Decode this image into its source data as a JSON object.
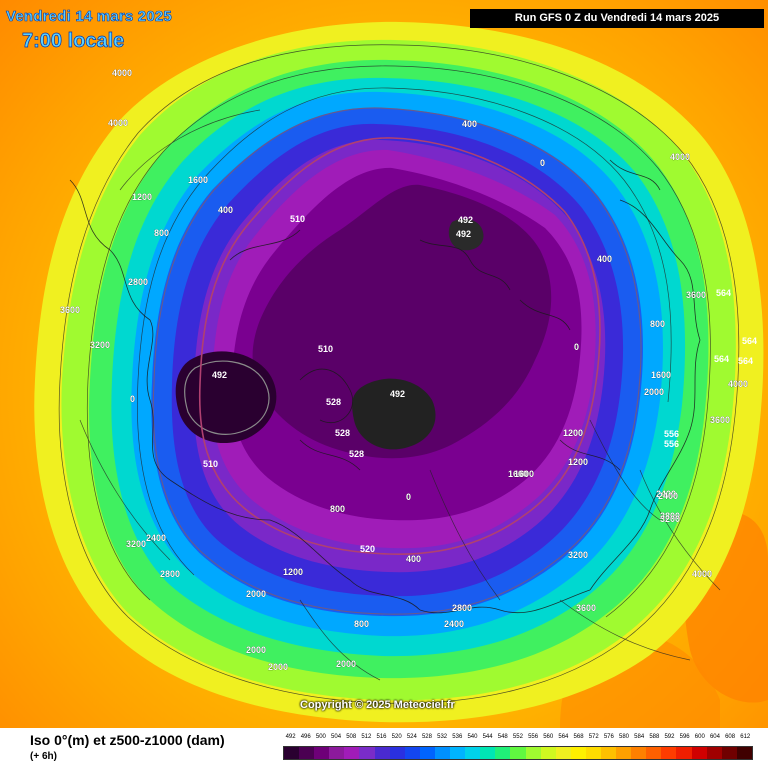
{
  "header": {
    "date_line": "Vendredi 14 mars 2025",
    "time_line": "7:00 locale",
    "run_info": "Run GFS 0 Z du Vendredi 14 mars 2025",
    "copyright": "Copyright © 2025 Meteociel.fr"
  },
  "footer": {
    "title": "Iso 0°(m) et z500-z1000 (dam)",
    "subtitle": "(+ 6h)"
  },
  "legend": {
    "values": [
      "492",
      "496",
      "500",
      "504",
      "508",
      "512",
      "516",
      "520",
      "524",
      "528",
      "532",
      "536",
      "540",
      "544",
      "548",
      "552",
      "556",
      "560",
      "564",
      "568",
      "572",
      "576",
      "580",
      "584",
      "588",
      "592",
      "596",
      "600",
      "604",
      "608",
      "612"
    ],
    "colors": [
      "#2a0030",
      "#4b0052",
      "#6e0078",
      "#8c1a9c",
      "#a01cb8",
      "#7a2cc8",
      "#4a2ad0",
      "#2a30e0",
      "#1446f0",
      "#0064ff",
      "#0090ff",
      "#00b4ff",
      "#00d2ea",
      "#00e6b4",
      "#20f078",
      "#60f840",
      "#a0fa30",
      "#d0f820",
      "#f0f020",
      "#fff000",
      "#ffdc00",
      "#ffc000",
      "#ffa000",
      "#ff8000",
      "#ff6000",
      "#ff3c00",
      "#f01e00",
      "#d00000",
      "#a00000",
      "#700000",
      "#400000"
    ]
  },
  "map": {
    "thickness_labels": [
      "492",
      "492",
      "492",
      "492",
      "510",
      "510",
      "510",
      "528",
      "528",
      "528",
      "520",
      "564",
      "564",
      "564",
      "564",
      "556",
      "556"
    ],
    "freezing_level_labels": [
      "4000",
      "4000",
      "4000",
      "3600",
      "3200",
      "2800",
      "2400",
      "2000",
      "1600",
      "1200",
      "800",
      "400",
      "0",
      "4000",
      "2800",
      "2400",
      "2000",
      "1600",
      "1200",
      "800",
      "400",
      "0",
      "3600",
      "3200",
      "2800",
      "2000",
      "1200",
      "800",
      "400",
      "0",
      "4000",
      "3600",
      "3200",
      "2800",
      "2400",
      "2000",
      "1600",
      "1200",
      "800",
      "400",
      "0",
      "3600",
      "3200",
      "2400",
      "2000",
      "1600"
    ]
  }
}
